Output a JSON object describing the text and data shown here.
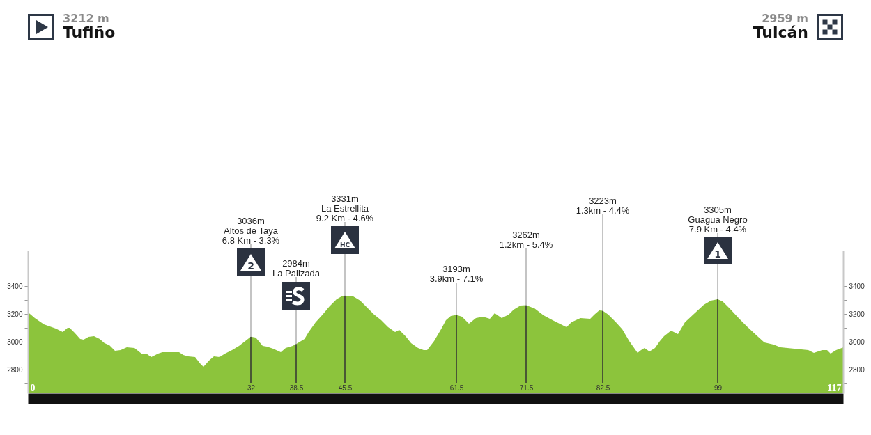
{
  "chart_data": {
    "type": "area",
    "color": "#8cc43c",
    "x": [
      0,
      1,
      2.3,
      4,
      5,
      5.7,
      6,
      6.7,
      7.5,
      8,
      8.7,
      9.5,
      10.3,
      11,
      11.7,
      12.5,
      13.3,
      14.2,
      15.3,
      16.3,
      17,
      17.7,
      18.7,
      19.3,
      21.7,
      22.3,
      23,
      24,
      24.7,
      25.2,
      26,
      26.7,
      27.5,
      28.3,
      29.3,
      30.3,
      31.2,
      32,
      32.7,
      33.7,
      34.3,
      35.2,
      36.3,
      37,
      38,
      38.5,
      39.7,
      40.3,
      41.3,
      42.3,
      43.3,
      44.3,
      45,
      45.5,
      46.7,
      47.7,
      48.7,
      49.7,
      50.7,
      51.7,
      52.7,
      53.3,
      54.2,
      55,
      56,
      56.8,
      57.3,
      58.3,
      59.3,
      60,
      60.7,
      61.5,
      62.3,
      63.3,
      64.3,
      65.3,
      66.3,
      67,
      68,
      69,
      69.7,
      70.7,
      71.5,
      72.7,
      74,
      75.3,
      76.3,
      77.3,
      78,
      79.3,
      80.7,
      81.3,
      82,
      82.5,
      83.3,
      84.3,
      85.3,
      86.3,
      87.5,
      88,
      88.5,
      89.2,
      90,
      90.7,
      91.3,
      92.3,
      93.3,
      94.3,
      95.7,
      97,
      98,
      99,
      99.7,
      100.7,
      102,
      103.3,
      104.7,
      105.7,
      107,
      108,
      110,
      112,
      112.8,
      114,
      114.7,
      115.2,
      116,
      117
    ],
    "values": [
      3212,
      3170,
      3125,
      3095,
      3070,
      3100,
      3100,
      3065,
      3020,
      3015,
      3035,
      3040,
      3020,
      2990,
      2975,
      2935,
      2940,
      2960,
      2955,
      2915,
      2915,
      2890,
      2915,
      2925,
      2925,
      2905,
      2895,
      2890,
      2845,
      2820,
      2865,
      2895,
      2890,
      2915,
      2940,
      2970,
      3005,
      3036,
      3030,
      2970,
      2965,
      2950,
      2925,
      2955,
      2970,
      2984,
      3020,
      3070,
      3140,
      3195,
      3255,
      3305,
      3325,
      3331,
      3325,
      3295,
      3245,
      3195,
      3155,
      3105,
      3070,
      3085,
      3040,
      2990,
      2955,
      2940,
      2940,
      3005,
      3090,
      3155,
      3185,
      3193,
      3180,
      3130,
      3170,
      3180,
      3165,
      3205,
      3170,
      3195,
      3230,
      3260,
      3262,
      3240,
      3190,
      3155,
      3130,
      3105,
      3140,
      3170,
      3165,
      3195,
      3225,
      3223,
      3195,
      3145,
      3090,
      3005,
      2920,
      2940,
      2955,
      2930,
      2955,
      3005,
      3040,
      3080,
      3055,
      3140,
      3205,
      3265,
      3295,
      3305,
      3290,
      3240,
      3170,
      3105,
      3040,
      2995,
      2980,
      2960,
      2950,
      2940,
      2920,
      2940,
      2940,
      2915,
      2940,
      2959
    ],
    "xlim": [
      0,
      117
    ],
    "xticks": [
      0,
      32,
      38.5,
      45.5,
      61.5,
      71.5,
      82.5,
      99,
      117
    ],
    "ylim": [
      2630,
      3655
    ],
    "yticks": [
      {
        "value": 2700,
        "label": null
      },
      2800,
      {
        "value": 2900,
        "label": null
      },
      3000,
      {
        "value": 3100,
        "label": null
      },
      3200,
      {
        "value": 3300,
        "label": null
      },
      3400
    ],
    "y2lim": [
      2630,
      3655
    ],
    "y2ticks": [
      {
        "value": 2700,
        "label": null
      },
      2800,
      {
        "value": 2900,
        "label": null
      },
      3000,
      {
        "value": 3100,
        "label": null
      },
      3200,
      {
        "value": 3300,
        "label": null
      },
      3400
    ],
    "ref_lines": [
      {
        "axis": "x",
        "value": 32,
        "color": "#333333"
      },
      {
        "axis": "x",
        "value": 38.5,
        "color": "#333333"
      },
      {
        "axis": "x",
        "value": 45.5,
        "color": "#333333"
      },
      {
        "axis": "x",
        "value": 61.5,
        "color": "#333333"
      },
      {
        "axis": "x",
        "value": 71.5,
        "color": "#333333"
      },
      {
        "axis": "x",
        "value": 82.5,
        "color": "#333333"
      },
      {
        "axis": "x",
        "value": 99,
        "color": "#333333"
      }
    ],
    "annotations": [
      "3212 m",
      "Tufiño",
      "2959 m",
      "Tulcán",
      {
        "text": "3036m\nAltos de Taya\n6.8 Km - 3.3%",
        "x": 32,
        "y": 3036
      },
      {
        "text": "2984m\nLa Palizada",
        "x": 38.5,
        "y": 2984
      },
      {
        "text": "3331m\nLa Estrellita\n9.2 Km - 4.6%",
        "x": 45.5,
        "y": 3331
      },
      {
        "text": "3193m\n3.9km - 7.1%",
        "x": 61.5,
        "y": 3193
      },
      {
        "text": "3262m\n1.2km - 5.4%",
        "x": 71.5,
        "y": 3262
      },
      {
        "text": "3223m\n1.3km - 4.4%",
        "x": 82.5,
        "y": 3223
      },
      {
        "text": "3305m\nGuagua Negro\n7.9 Km - 4.4%",
        "x": 99,
        "y": 3305
      },
      "2",
      "HC",
      "1"
    ]
  }
}
